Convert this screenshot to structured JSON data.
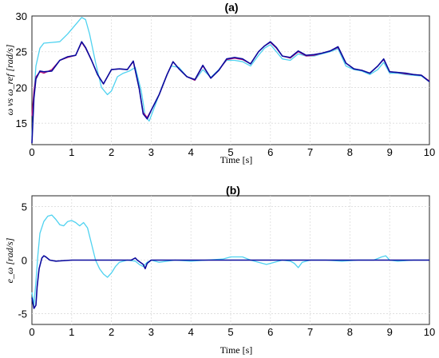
{
  "chart_data": [
    {
      "type": "line",
      "title": "(a)",
      "xlabel": "Time  [s]",
      "ylabel": "ω vs ω_ref [rad/s]",
      "xlim": [
        0,
        10
      ],
      "ylim": [
        12,
        30
      ],
      "xticks": [
        "0",
        "1",
        "2",
        "3",
        "4",
        "5",
        "6",
        "7",
        "8",
        "9",
        "10"
      ],
      "yticks": [
        "15",
        "20",
        "25",
        "30"
      ],
      "grid": true,
      "series": [
        {
          "color": "#4fd2f0",
          "x": [
            0,
            0.05,
            0.1,
            0.2,
            0.3,
            0.5,
            0.7,
            0.9,
            1.1,
            1.25,
            1.35,
            1.45,
            1.6,
            1.75,
            1.9,
            2.0,
            2.15,
            2.3,
            2.45,
            2.6,
            2.75,
            2.85,
            2.95,
            3.1,
            3.3,
            3.5,
            3.7,
            3.9,
            4.1,
            4.3,
            4.5,
            4.7,
            4.9,
            5.1,
            5.3,
            5.5,
            5.7,
            5.85,
            6.0,
            6.15,
            6.3,
            6.5,
            6.7,
            6.9,
            7.1,
            7.3,
            7.5,
            7.7,
            7.9,
            8.1,
            8.3,
            8.5,
            8.7,
            8.85,
            9.0,
            9.2,
            9.4,
            9.6,
            9.8,
            10.0
          ],
          "y": [
            13,
            19,
            23,
            25.5,
            26.2,
            26.3,
            26.4,
            27.5,
            28.8,
            29.8,
            29.5,
            27.5,
            23.5,
            20.0,
            19.0,
            19.5,
            21.5,
            22.0,
            22.3,
            22.8,
            19.5,
            16.0,
            15.3,
            17.5,
            20.5,
            23.0,
            22.8,
            21.5,
            21.0,
            22.5,
            21.4,
            22.5,
            23.8,
            23.8,
            23.6,
            23.0,
            24.5,
            25.5,
            26.0,
            25.0,
            24.0,
            23.8,
            24.7,
            24.4,
            24.4,
            24.7,
            25.0,
            25.4,
            23.0,
            22.5,
            22.3,
            21.8,
            22.5,
            23.5,
            22.0,
            22.0,
            21.8,
            21.7,
            21.6,
            20.8
          ]
        },
        {
          "color": "#c2187a",
          "x": [
            0,
            0.05,
            0.1,
            0.2,
            0.3,
            0.5,
            0.7,
            0.9,
            1.1,
            1.25,
            1.35,
            1.5,
            1.65,
            1.8,
            2.0,
            2.2,
            2.4,
            2.55,
            2.7,
            2.8,
            2.9,
            3.0,
            3.2,
            3.4,
            3.55,
            3.7,
            3.9,
            4.1,
            4.3,
            4.5,
            4.7,
            4.9,
            5.1,
            5.3,
            5.5,
            5.7,
            5.85,
            6.0,
            6.15,
            6.3,
            6.5,
            6.7,
            6.9,
            7.1,
            7.3,
            7.5,
            7.7,
            7.9,
            8.1,
            8.3,
            8.5,
            8.7,
            8.85,
            9.0,
            9.2,
            9.4,
            9.6,
            9.8,
            10.0
          ],
          "y": [
            16,
            19.5,
            21.5,
            22.2,
            22.0,
            22.5,
            23.8,
            24.2,
            24.5,
            26.3,
            25.5,
            23.8,
            21.8,
            20.5,
            22.5,
            22.6,
            22.5,
            23.6,
            19.8,
            16.5,
            15.8,
            16.8,
            19.0,
            21.8,
            23.6,
            22.6,
            21.5,
            21.0,
            23.0,
            21.3,
            22.4,
            23.9,
            24.1,
            23.9,
            23.3,
            25.0,
            25.8,
            26.3,
            25.5,
            24.4,
            24.1,
            25.0,
            24.4,
            24.5,
            24.8,
            25.1,
            25.6,
            23.4,
            22.6,
            22.4,
            22.0,
            23.0,
            23.9,
            22.2,
            22.1,
            21.9,
            21.8,
            21.7,
            20.9
          ]
        },
        {
          "color": "#0b0b9e",
          "x": [
            0,
            0.05,
            0.1,
            0.2,
            0.3,
            0.5,
            0.7,
            0.9,
            1.1,
            1.25,
            1.35,
            1.5,
            1.65,
            1.8,
            2.0,
            2.2,
            2.4,
            2.55,
            2.7,
            2.8,
            2.9,
            3.0,
            3.2,
            3.4,
            3.55,
            3.7,
            3.9,
            4.1,
            4.3,
            4.5,
            4.7,
            4.9,
            5.1,
            5.3,
            5.5,
            5.7,
            5.85,
            6.0,
            6.15,
            6.3,
            6.5,
            6.7,
            6.9,
            7.1,
            7.3,
            7.5,
            7.7,
            7.9,
            8.1,
            8.3,
            8.5,
            8.7,
            8.85,
            9.0,
            9.2,
            9.4,
            9.6,
            9.8,
            10.0
          ],
          "y": [
            12.2,
            18.5,
            21.2,
            22.3,
            22.2,
            22.3,
            23.8,
            24.3,
            24.5,
            26.4,
            25.6,
            23.8,
            21.8,
            20.5,
            22.5,
            22.6,
            22.5,
            23.7,
            19.8,
            16.3,
            15.6,
            16.8,
            19.0,
            21.8,
            23.6,
            22.6,
            21.5,
            21.1,
            23.1,
            21.3,
            22.4,
            24.0,
            24.2,
            24.0,
            23.3,
            25.0,
            25.8,
            26.4,
            25.6,
            24.4,
            24.2,
            25.1,
            24.5,
            24.6,
            24.8,
            25.1,
            25.7,
            23.4,
            22.6,
            22.4,
            22.0,
            23.0,
            24.0,
            22.2,
            22.1,
            22.0,
            21.8,
            21.7,
            20.8
          ]
        }
      ]
    },
    {
      "type": "line",
      "title": "(b)",
      "xlabel": "Time  [s]",
      "ylabel": "e_ω [rad/s]",
      "xlim": [
        0,
        10
      ],
      "ylim": [
        -6,
        6
      ],
      "xticks": [
        "0",
        "1",
        "2",
        "3",
        "4",
        "5",
        "6",
        "7",
        "8",
        "9",
        "10"
      ],
      "yticks": [
        "-5",
        "0",
        "5"
      ],
      "grid": true,
      "series": [
        {
          "color": "#4fd2f0",
          "x": [
            0,
            0.05,
            0.1,
            0.15,
            0.2,
            0.3,
            0.4,
            0.5,
            0.6,
            0.7,
            0.8,
            0.9,
            1.0,
            1.1,
            1.2,
            1.3,
            1.4,
            1.5,
            1.6,
            1.7,
            1.8,
            1.9,
            2.0,
            2.1,
            2.2,
            2.4,
            2.6,
            2.7,
            2.8,
            2.9,
            3.0,
            3.2,
            3.6,
            4.0,
            4.4,
            4.8,
            5.0,
            5.3,
            5.5,
            5.7,
            5.9,
            6.1,
            6.3,
            6.5,
            6.6,
            6.7,
            6.8,
            7.0,
            7.4,
            7.8,
            8.2,
            8.6,
            8.8,
            8.9,
            9.0,
            9.2,
            9.6,
            10.0
          ],
          "y": [
            -3.0,
            -4.2,
            -2.0,
            0.5,
            2.5,
            3.6,
            4.1,
            4.2,
            3.8,
            3.3,
            3.2,
            3.6,
            3.7,
            3.5,
            3.2,
            3.5,
            3.0,
            1.5,
            0.0,
            -0.8,
            -1.3,
            -1.6,
            -1.2,
            -0.6,
            -0.2,
            0.0,
            -0.1,
            -0.4,
            -0.6,
            -0.2,
            0.0,
            -0.2,
            0.0,
            -0.1,
            0.0,
            0.1,
            0.3,
            0.3,
            0.0,
            -0.2,
            -0.4,
            -0.2,
            0.0,
            -0.1,
            -0.3,
            -0.7,
            -0.2,
            0.0,
            0.0,
            -0.1,
            0.0,
            0.0,
            0.3,
            0.4,
            0.0,
            -0.1,
            0.0,
            0.0
          ]
        },
        {
          "color": "#0b0b9e",
          "x": [
            0,
            0.05,
            0.1,
            0.13,
            0.18,
            0.25,
            0.3,
            0.35,
            0.45,
            0.6,
            1.0,
            1.5,
            2.0,
            2.5,
            2.6,
            2.65,
            2.8,
            2.85,
            2.9,
            3.0,
            3.5,
            4.0,
            5.0,
            6.0,
            7.0,
            8.0,
            9.0,
            10.0
          ],
          "y": [
            -3.5,
            -4.5,
            -4.2,
            -2.5,
            -0.8,
            0.2,
            0.4,
            0.3,
            0.0,
            -0.1,
            0.0,
            0.0,
            0.0,
            0.0,
            0.2,
            0.0,
            -0.4,
            -0.8,
            -0.3,
            0.0,
            0.0,
            0.0,
            0.0,
            0.0,
            0.0,
            0.0,
            0.0,
            0.0
          ]
        }
      ]
    }
  ]
}
